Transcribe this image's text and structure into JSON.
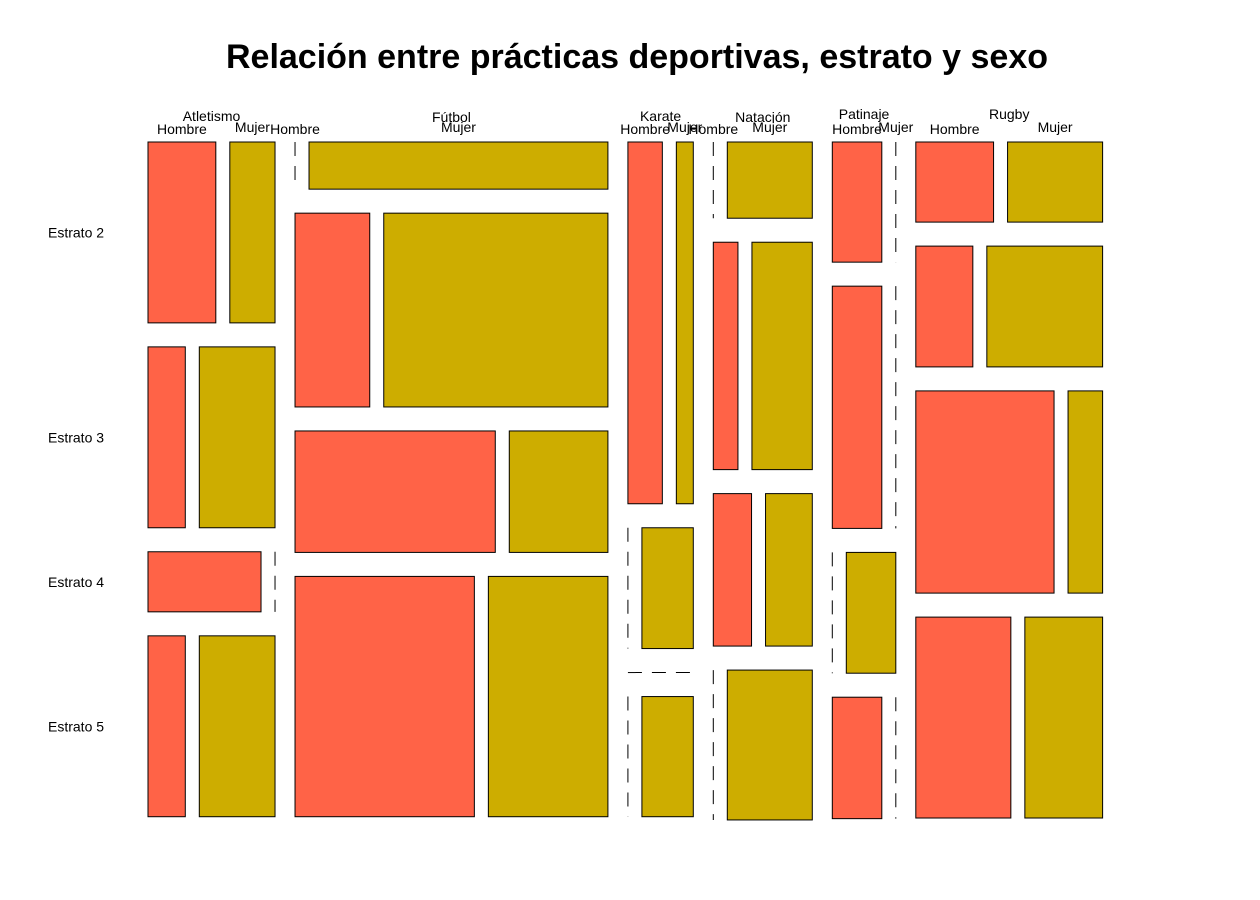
{
  "chart_data": {
    "type": "mosaic",
    "title": "Relación entre prácticas deportivas, estrato y sexo",
    "sports": [
      "Atletismo",
      "Fútbol",
      "Karate",
      "Natación",
      "Patinaje",
      "Rugby"
    ],
    "strata": [
      "Estrato 2",
      "Estrato 3",
      "Estrato 4",
      "Estrato 5"
    ],
    "sexes": [
      "Hombre",
      "Mujer"
    ],
    "colors": {
      "Hombre": "#FF6347",
      "Mujer": "#CDAD00"
    },
    "sport_proportions": [
      0.136,
      0.335,
      0.07,
      0.106,
      0.068,
      0.2
    ],
    "strata_proportions_by_sport": [
      [
        0.28,
        0.28,
        0.093,
        0.28
      ],
      [
        0.073,
        0.3,
        0.188,
        0.372
      ],
      [
        0.56,
        0.187,
        0.0,
        0.186
      ],
      [
        0.118,
        0.352,
        0.236,
        0.232
      ],
      [
        0.186,
        0.375,
        0.187,
        0.188
      ],
      [
        0.124,
        0.187,
        0.313,
        0.311
      ]
    ],
    "male_share_by_sport_and_stratum": [
      [
        0.6,
        0.33,
        1.0,
        0.33
      ],
      [
        0.0,
        0.25,
        0.67,
        0.6
      ],
      [
        0.67,
        0.0,
        0.0,
        0.0
      ],
      [
        0.0,
        0.29,
        0.45,
        0.0
      ],
      [
        1.0,
        1.0,
        0.0,
        1.0
      ],
      [
        0.45,
        0.33,
        0.8,
        0.55
      ]
    ]
  }
}
